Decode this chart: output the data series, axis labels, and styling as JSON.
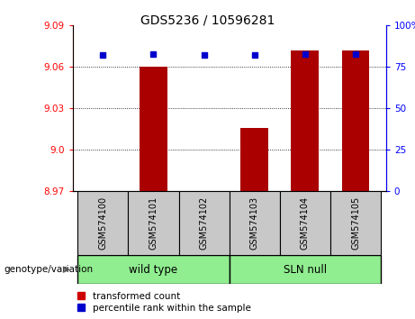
{
  "title": "GDS5236 / 10596281",
  "samples": [
    "GSM574100",
    "GSM574101",
    "GSM574102",
    "GSM574103",
    "GSM574104",
    "GSM574105"
  ],
  "transformed_count": [
    8.97,
    9.06,
    8.97,
    9.016,
    9.072,
    9.072
  ],
  "percentile_rank": [
    82,
    83,
    82,
    82,
    83,
    83
  ],
  "ylim_left": [
    8.97,
    9.09
  ],
  "yticks_left": [
    8.97,
    9.0,
    9.03,
    9.06,
    9.09
  ],
  "ylim_right": [
    0,
    100
  ],
  "yticks_right": [
    0,
    25,
    50,
    75,
    100
  ],
  "bar_color": "#AA0000",
  "dot_color": "#0000CC",
  "label_bg_color": "#C8C8C8",
  "green_color": "#90EE90",
  "legend_items": [
    "transformed count",
    "percentile rank within the sample"
  ],
  "legend_colors": [
    "#CC0000",
    "#0000CC"
  ],
  "groups_info": [
    {
      "label": "wild type",
      "start": 0,
      "end": 2
    },
    {
      "label": "SLN null",
      "start": 3,
      "end": 5
    }
  ]
}
